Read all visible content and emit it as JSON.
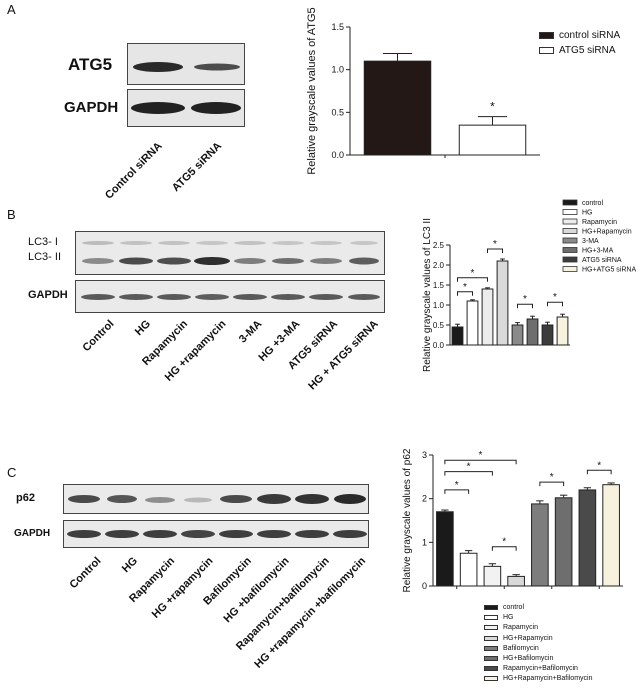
{
  "panel_a": {
    "letter": "A",
    "blot_labels": [
      "ATG5",
      "GAPDH"
    ],
    "lane_labels": [
      "Control siRNA",
      "ATG5 siRNA"
    ],
    "legend": [
      {
        "label": "control siRNA",
        "color": "#231816"
      },
      {
        "label": "ATG5 siRNA",
        "color": "#ffffff"
      }
    ]
  },
  "panel_b": {
    "letter": "B",
    "blot_labels": [
      "LC3- I",
      "LC3- II",
      "GAPDH"
    ],
    "lane_labels": [
      "Control",
      "HG",
      "Rapamycin",
      "HG +rapamycin",
      "3-MA",
      "HG +3-MA",
      "ATG5 siRNA",
      "HG + ATG5 siRNA"
    ]
  },
  "panel_c": {
    "letter": "C",
    "blot_labels": [
      "p62",
      "GAPDH"
    ],
    "lane_labels": [
      "Control",
      "HG",
      "Rapamycin",
      "HG +rapamycin",
      "Bafilomycin",
      "HG +bafilomycin",
      "Rapamycin+bafilomycin",
      "HG +rapamycin +bafilomycin"
    ]
  },
  "chart_data": [
    {
      "type": "bar",
      "categories": [
        "control siRNA",
        "ATG5 siRNA"
      ],
      "values": [
        1.1,
        0.35
      ],
      "errors": [
        0.09,
        0.1
      ],
      "colors": [
        "#231816",
        "#ffffff"
      ],
      "ylabel": "Relative grayscale values of ATG5",
      "ylim": [
        0,
        1.5
      ],
      "yticks": [
        "0.0",
        "0.5",
        "1.0",
        "1.5"
      ],
      "significance": [
        "*"
      ],
      "legend_position": "top-right"
    },
    {
      "type": "bar",
      "categories": [
        "control",
        "HG",
        "Rapamycin",
        "HG+Rapamycin",
        "3-MA",
        "HG+3-MA",
        "ATG5 siRNA",
        "HG+ATG5 siRNA"
      ],
      "values": [
        0.45,
        1.1,
        1.4,
        2.1,
        0.5,
        0.65,
        0.5,
        0.7
      ],
      "errors": [
        0.07,
        0.03,
        0.03,
        0.05,
        0.06,
        0.07,
        0.07,
        0.07
      ],
      "colors": [
        "#1a1a1a",
        "#ffffff",
        "#ececec",
        "#d9d9d9",
        "#8a8a8a",
        "#6e6e6e",
        "#3c3c3c",
        "#f7f2dd"
      ],
      "ylabel": "Relative grayscale values of LC3 II",
      "ylim": [
        0,
        2.5
      ],
      "yticks": [
        "0.0",
        "0.5",
        "1.0",
        "1.5",
        "2.0",
        "2.5"
      ],
      "significance": [
        "*",
        "*",
        "*",
        "*",
        "*"
      ],
      "legend_position": "top-right"
    },
    {
      "type": "bar",
      "categories": [
        "control",
        "HG",
        "Rapamycin",
        "HG+Rapamycin",
        "Bafilomycin",
        "HG+Bafilomycin",
        "Rapamycin+Bafilomycin",
        "HG+Rapamycin+Bafilomycin"
      ],
      "values": [
        1.7,
        0.75,
        0.45,
        0.22,
        1.88,
        2.02,
        2.2,
        2.32
      ],
      "errors": [
        0.04,
        0.06,
        0.06,
        0.04,
        0.07,
        0.06,
        0.05,
        0.04
      ],
      "colors": [
        "#1a1a1a",
        "#ffffff",
        "#f2f2f2",
        "#d9d9d9",
        "#7d7d7d",
        "#6e6e6e",
        "#4a4a4a",
        "#f7f2dd"
      ],
      "ylabel": "Relative grayscale values of p62",
      "ylim": [
        0,
        3
      ],
      "yticks": [
        "0",
        "1",
        "2",
        "3"
      ],
      "significance": [
        "*",
        "*",
        "*",
        "*",
        "*",
        "*"
      ],
      "legend_position": "bottom"
    }
  ]
}
